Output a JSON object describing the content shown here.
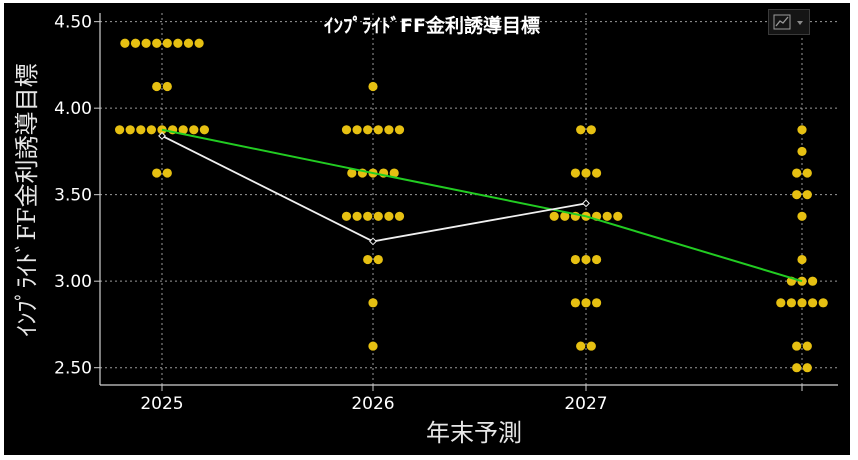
{
  "chart_data": {
    "type": "scatter",
    "title": "ｲﾝﾌﾟﾗｲﾄﾞFF金利誘導目標",
    "xlabel": "年末予測",
    "ylabel": "ｲﾝﾌﾟﾗｲﾄﾞFF金利誘導目標",
    "x_tick_labels": [
      "2025",
      "2026",
      "2027",
      ""
    ],
    "y_ticks": [
      2.5,
      3.0,
      3.5,
      4.0,
      4.5
    ],
    "y_tick_labels": [
      "2.50",
      "3.00",
      "3.50",
      "4.00",
      "4.50"
    ],
    "ylim": [
      2.4,
      4.55
    ],
    "grid": true,
    "dots": [
      {
        "x": "2025",
        "points": [
          [
            4.375,
            8
          ],
          [
            4.125,
            2
          ],
          [
            3.875,
            9
          ],
          [
            3.625,
            2
          ]
        ]
      },
      {
        "x": "2026",
        "points": [
          [
            4.125,
            1
          ],
          [
            3.875,
            6
          ],
          [
            3.625,
            5
          ],
          [
            3.375,
            6
          ],
          [
            3.125,
            2
          ],
          [
            2.875,
            1
          ],
          [
            2.625,
            1
          ]
        ]
      },
      {
        "x": "2027",
        "points": [
          [
            3.875,
            2
          ],
          [
            3.625,
            3
          ],
          [
            3.375,
            7
          ],
          [
            3.125,
            3
          ],
          [
            2.875,
            3
          ],
          [
            2.625,
            2
          ]
        ]
      },
      {
        "x": "",
        "points": [
          [
            3.875,
            1
          ],
          [
            3.75,
            1
          ],
          [
            3.625,
            2
          ],
          [
            3.5,
            2
          ],
          [
            3.375,
            1
          ],
          [
            3.125,
            1
          ],
          [
            3.0,
            3
          ],
          [
            2.875,
            5
          ],
          [
            2.625,
            2
          ],
          [
            2.5,
            2
          ]
        ]
      }
    ],
    "series": [
      {
        "name": "",
        "values": [
          3.875,
          3.625,
          3.375,
          3.0
        ]
      },
      {
        "name": "",
        "values": [
          3.84,
          3.23,
          3.45
        ]
      }
    ],
    "colors": {
      "dots": "#e6c012",
      "green_line": "#22cc22",
      "white_line": "#f0f0f0",
      "grid": "#9a9a9a",
      "axis": "#d0d0d0"
    },
    "icons": {
      "menu": "line-chart-icon"
    }
  }
}
